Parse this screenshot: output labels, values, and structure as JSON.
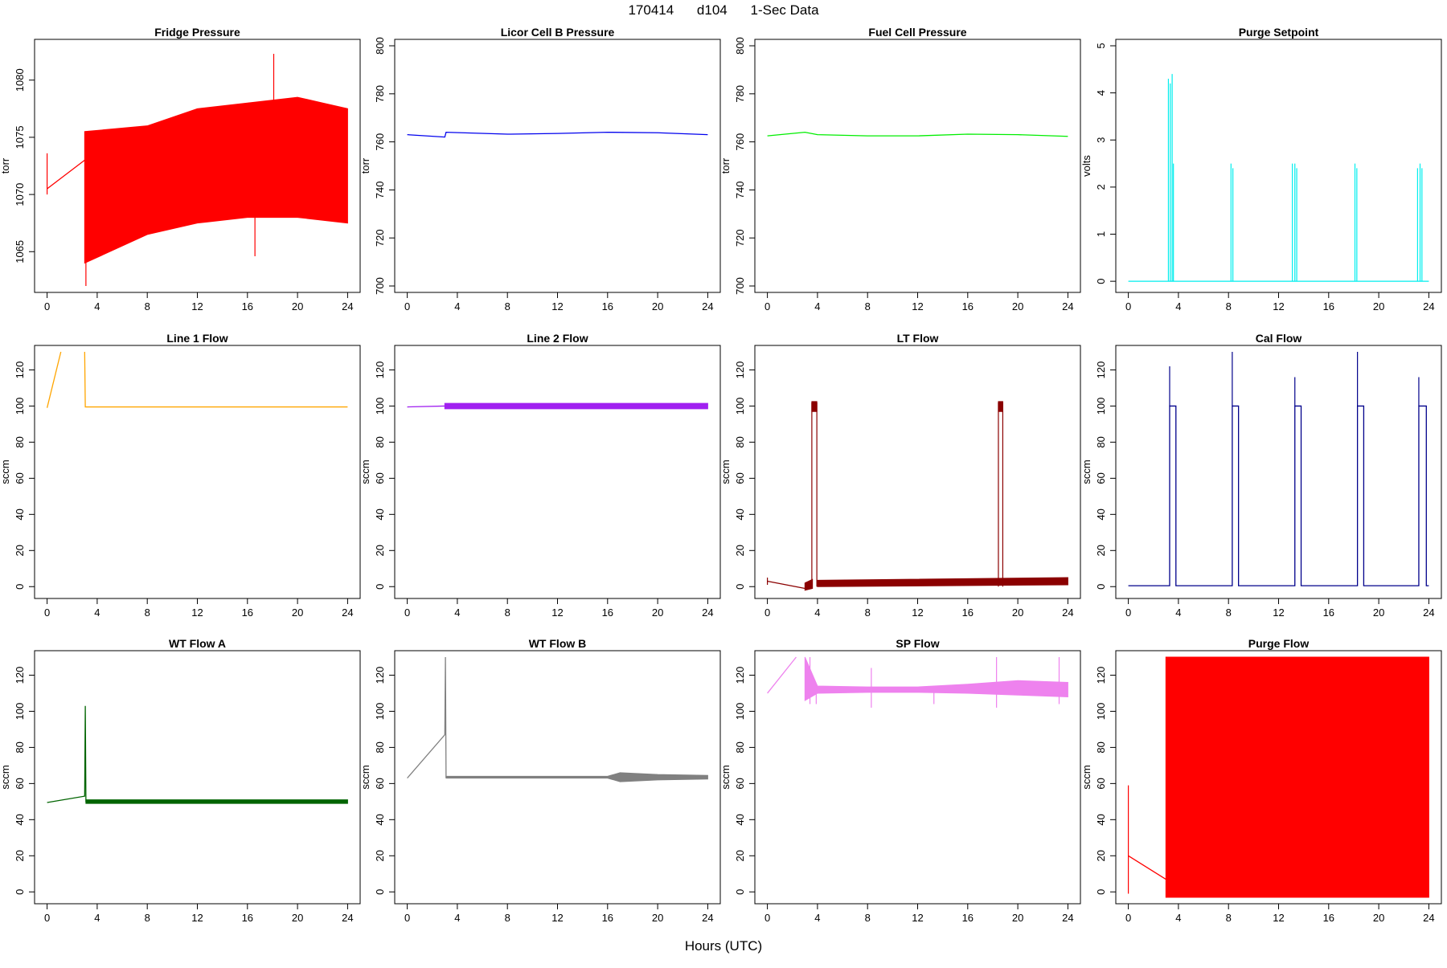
{
  "header": {
    "date": "170414",
    "site": "d104",
    "resolution": "1-Sec Data"
  },
  "x_axis_label": "Hours (UTC)",
  "chart_data": [
    {
      "type": "line",
      "title": "Fridge Pressure",
      "ylabel": "torr",
      "color": "#ff0000",
      "xlim": [
        0,
        24
      ],
      "ylim": [
        1062,
        1083
      ],
      "x_ticks": [
        0,
        4,
        8,
        12,
        16,
        20,
        24
      ],
      "y_ticks": [
        1065,
        1070,
        1075,
        1080
      ],
      "segments": [
        {
          "x": [
            0,
            3
          ],
          "y": [
            1070.5,
            1073
          ]
        }
      ],
      "bands": [
        {
          "x": [
            3,
            8,
            12,
            16,
            20,
            24
          ],
          "lo": [
            1064,
            1066.5,
            1067.5,
            1068,
            1068,
            1067.5
          ],
          "hi": [
            1075.5,
            1076,
            1077.5,
            1078,
            1078.5,
            1077.5
          ]
        }
      ],
      "spikes": [
        {
          "x": 0.0,
          "y0": 1070,
          "y1": 1073.6
        },
        {
          "x": 3.1,
          "y0": 1062,
          "y1": 1074
        },
        {
          "x": 18.1,
          "y0": 1072,
          "y1": 1082.3
        },
        {
          "x": 16.6,
          "y0": 1064.6,
          "y1": 1070
        }
      ]
    },
    {
      "type": "line",
      "title": "Licor Cell B Pressure",
      "ylabel": "torr",
      "color": "#0000ee",
      "xlim": [
        0,
        24
      ],
      "ylim": [
        700,
        800
      ],
      "x_ticks": [
        0,
        4,
        8,
        12,
        16,
        20,
        24
      ],
      "y_ticks": [
        700,
        720,
        740,
        760,
        780,
        800
      ],
      "segments": [
        {
          "x": [
            0,
            3,
            3.1,
            8,
            12,
            16,
            20,
            24
          ],
          "y": [
            763,
            762,
            764,
            763.2,
            763.5,
            764,
            763.8,
            763
          ]
        }
      ],
      "bands": [],
      "spikes": []
    },
    {
      "type": "line",
      "title": "Fuel Cell Pressure",
      "ylabel": "torr",
      "color": "#00ee00",
      "xlim": [
        0,
        24
      ],
      "ylim": [
        700,
        800
      ],
      "x_ticks": [
        0,
        4,
        8,
        12,
        16,
        20,
        24
      ],
      "y_ticks": [
        700,
        720,
        740,
        760,
        780,
        800
      ],
      "segments": [
        {
          "x": [
            0,
            3,
            4,
            8,
            12,
            16,
            20,
            24
          ],
          "y": [
            762.5,
            764,
            763,
            762.5,
            762.5,
            763.2,
            763,
            762.3
          ]
        }
      ],
      "bands": [],
      "spikes": []
    },
    {
      "type": "line",
      "title": "Purge Setpoint",
      "ylabel": "volts",
      "color": "#00eeee",
      "xlim": [
        0,
        24
      ],
      "ylim": [
        -0.1,
        5
      ],
      "x_ticks": [
        0,
        4,
        8,
        12,
        16,
        20,
        24
      ],
      "y_ticks": [
        0,
        1,
        2,
        3,
        4,
        5
      ],
      "segments": [
        {
          "x": [
            0,
            24
          ],
          "y": [
            0,
            0
          ]
        }
      ],
      "bands": [],
      "spikes": [
        {
          "x": 3.2,
          "y0": 0,
          "y1": 4.3
        },
        {
          "x": 3.35,
          "y0": 0,
          "y1": 4.2
        },
        {
          "x": 3.5,
          "y0": 0,
          "y1": 4.4
        },
        {
          "x": 3.6,
          "y0": 0,
          "y1": 2.5
        },
        {
          "x": 8.2,
          "y0": 0,
          "y1": 2.5
        },
        {
          "x": 8.35,
          "y0": 0,
          "y1": 2.4
        },
        {
          "x": 13.1,
          "y0": 0,
          "y1": 2.5
        },
        {
          "x": 13.3,
          "y0": 0,
          "y1": 2.5
        },
        {
          "x": 13.45,
          "y0": 0,
          "y1": 2.4
        },
        {
          "x": 18.1,
          "y0": 0,
          "y1": 2.5
        },
        {
          "x": 18.25,
          "y0": 0,
          "y1": 2.4
        },
        {
          "x": 23.1,
          "y0": 0,
          "y1": 2.4
        },
        {
          "x": 23.3,
          "y0": 0,
          "y1": 2.5
        },
        {
          "x": 23.45,
          "y0": 0,
          "y1": 2.4
        }
      ]
    },
    {
      "type": "line",
      "title": "Line 1 Flow",
      "ylabel": "sccm",
      "color": "#ffa500",
      "xlim": [
        0,
        24
      ],
      "ylim": [
        -3,
        130
      ],
      "x_ticks": [
        0,
        4,
        8,
        12,
        16,
        20,
        24
      ],
      "y_ticks": [
        0,
        20,
        40,
        60,
        80,
        100,
        120
      ],
      "segments": [
        {
          "x": [
            0,
            1.1
          ],
          "y": [
            99,
            130
          ]
        },
        {
          "x": [
            3.0,
            3.05,
            24
          ],
          "y": [
            130,
            99.5,
            99.5
          ]
        }
      ],
      "bands": [],
      "spikes": []
    },
    {
      "type": "line",
      "title": "Line 2 Flow",
      "ylabel": "sccm",
      "color": "#a020f0",
      "xlim": [
        0,
        24
      ],
      "ylim": [
        -3,
        130
      ],
      "x_ticks": [
        0,
        4,
        8,
        12,
        16,
        20,
        24
      ],
      "y_ticks": [
        0,
        20,
        40,
        60,
        80,
        100,
        120
      ],
      "segments": [
        {
          "x": [
            0,
            3
          ],
          "y": [
            99.5,
            100
          ]
        }
      ],
      "bands": [
        {
          "x": [
            3,
            24
          ],
          "lo": [
            98.5,
            98.5
          ],
          "hi": [
            101.5,
            101.5
          ]
        }
      ],
      "spikes": []
    },
    {
      "type": "line",
      "title": "LT Flow",
      "ylabel": "sccm",
      "color": "#8b0000",
      "xlim": [
        0,
        24
      ],
      "ylim": [
        -3,
        130
      ],
      "x_ticks": [
        0,
        4,
        8,
        12,
        16,
        20,
        24
      ],
      "y_ticks": [
        0,
        20,
        40,
        60,
        80,
        100,
        120
      ],
      "segments": [
        {
          "x": [
            0,
            3
          ],
          "y": [
            3,
            -1
          ]
        }
      ],
      "bands": [
        {
          "x": [
            3,
            3.6
          ],
          "lo": [
            -2,
            -1
          ],
          "hi": [
            2,
            4
          ]
        },
        {
          "x": [
            4,
            24
          ],
          "lo": [
            0,
            1
          ],
          "hi": [
            3.5,
            5
          ]
        },
        {
          "x": [
            3.55,
            3.95
          ],
          "lo": [
            97,
            97
          ],
          "hi": [
            102.5,
            102.5
          ]
        },
        {
          "x": [
            18.45,
            18.8
          ],
          "lo": [
            97,
            97
          ],
          "hi": [
            102.5,
            102.5
          ]
        }
      ],
      "spikes": [
        {
          "x": 0,
          "y0": 1,
          "y1": 5
        },
        {
          "x": 3.55,
          "y0": 0,
          "y1": 102
        },
        {
          "x": 3.95,
          "y0": 0,
          "y1": 102
        },
        {
          "x": 18.45,
          "y0": 0,
          "y1": 102
        },
        {
          "x": 18.8,
          "y0": 0,
          "y1": 102
        }
      ]
    },
    {
      "type": "line",
      "title": "Cal Flow",
      "ylabel": "sccm",
      "color": "#00008b",
      "xlim": [
        0,
        24
      ],
      "ylim": [
        -3,
        130
      ],
      "x_ticks": [
        0,
        4,
        8,
        12,
        16,
        20,
        24
      ],
      "y_ticks": [
        0,
        20,
        40,
        60,
        80,
        100,
        120
      ],
      "segments": [
        {
          "x": [
            0,
            3.3,
            3.3,
            3.8,
            3.8,
            8.3,
            8.3,
            8.8,
            8.8,
            13.3,
            13.3,
            13.8,
            13.8,
            18.3,
            18.3,
            18.8,
            18.8,
            23.2,
            23.2,
            23.8,
            23.8,
            24
          ],
          "y": [
            0.5,
            0.5,
            100,
            100,
            0.5,
            0.5,
            100,
            100,
            0.5,
            0.5,
            100,
            100,
            0.5,
            0.5,
            100,
            100,
            0.5,
            0.5,
            100,
            100,
            0.5,
            0.5
          ]
        }
      ],
      "bands": [],
      "spikes": [
        {
          "x": 3.3,
          "y0": 100,
          "y1": 122
        },
        {
          "x": 8.3,
          "y0": 100,
          "y1": 130
        },
        {
          "x": 13.3,
          "y0": 100,
          "y1": 116
        },
        {
          "x": 18.3,
          "y0": 100,
          "y1": 130
        },
        {
          "x": 23.2,
          "y0": 100,
          "y1": 116
        }
      ]
    },
    {
      "type": "line",
      "title": "WT Flow A",
      "ylabel": "sccm",
      "color": "#006400",
      "xlim": [
        0,
        24
      ],
      "ylim": [
        -3,
        130
      ],
      "x_ticks": [
        0,
        4,
        8,
        12,
        16,
        20,
        24
      ],
      "y_ticks": [
        0,
        20,
        40,
        60,
        80,
        100,
        120
      ],
      "segments": [
        {
          "x": [
            0,
            3,
            3.05,
            3.1,
            24
          ],
          "y": [
            49.5,
            53,
            103,
            50,
            50
          ]
        }
      ],
      "bands": [
        {
          "x": [
            3.1,
            24
          ],
          "lo": [
            49,
            49
          ],
          "hi": [
            51,
            51
          ]
        }
      ],
      "spikes": []
    },
    {
      "type": "line",
      "title": "WT Flow B",
      "ylabel": "sccm",
      "color": "#808080",
      "xlim": [
        0,
        24
      ],
      "ylim": [
        -3,
        130
      ],
      "x_ticks": [
        0,
        4,
        8,
        12,
        16,
        20,
        24
      ],
      "y_ticks": [
        0,
        20,
        40,
        60,
        80,
        100,
        120
      ],
      "segments": [
        {
          "x": [
            0,
            3,
            3.05,
            3.1,
            24
          ],
          "y": [
            63,
            87,
            130,
            63.5,
            63.5
          ]
        }
      ],
      "bands": [
        {
          "x": [
            3.1,
            16,
            17,
            20,
            24
          ],
          "lo": [
            63,
            63,
            61,
            62,
            62.5
          ],
          "hi": [
            64,
            64,
            66,
            65,
            64.5
          ]
        }
      ],
      "spikes": []
    },
    {
      "type": "line",
      "title": "SP Flow",
      "ylabel": "sccm",
      "color": "#ee82ee",
      "xlim": [
        0,
        24
      ],
      "ylim": [
        -3,
        130
      ],
      "x_ticks": [
        0,
        4,
        8,
        12,
        16,
        20,
        24
      ],
      "y_ticks": [
        0,
        20,
        40,
        60,
        80,
        100,
        120
      ],
      "segments": [
        {
          "x": [
            0,
            2.3
          ],
          "y": [
            110,
            130
          ]
        }
      ],
      "bands": [
        {
          "x": [
            3,
            4,
            8,
            12,
            16,
            20,
            24
          ],
          "lo": [
            106,
            110,
            110.5,
            110.5,
            110,
            109,
            108
          ],
          "hi": [
            130,
            114,
            113.5,
            113.5,
            115,
            117,
            116
          ]
        }
      ],
      "spikes": [
        {
          "x": 3.4,
          "y0": 104,
          "y1": 130
        },
        {
          "x": 3.9,
          "y0": 104,
          "y1": 110
        },
        {
          "x": 8.3,
          "y0": 102,
          "y1": 124
        },
        {
          "x": 13.3,
          "y0": 104,
          "y1": 114
        },
        {
          "x": 18.3,
          "y0": 102,
          "y1": 130
        },
        {
          "x": 23.3,
          "y0": 104,
          "y1": 130
        }
      ]
    },
    {
      "type": "line",
      "title": "Purge Flow",
      "ylabel": "sccm",
      "color": "#ff0000",
      "xlim": [
        0,
        24
      ],
      "ylim": [
        -3,
        130
      ],
      "x_ticks": [
        0,
        4,
        8,
        12,
        16,
        20,
        24
      ],
      "y_ticks": [
        0,
        20,
        40,
        60,
        80,
        100,
        120
      ],
      "segments": [
        {
          "x": [
            0,
            3
          ],
          "y": [
            20,
            7
          ]
        }
      ],
      "bands": [
        {
          "x": [
            3,
            24
          ],
          "lo": [
            -3,
            -3
          ],
          "hi": [
            130,
            130
          ]
        }
      ],
      "spikes": [
        {
          "x": 0,
          "y0": -1,
          "y1": 59
        }
      ]
    }
  ]
}
